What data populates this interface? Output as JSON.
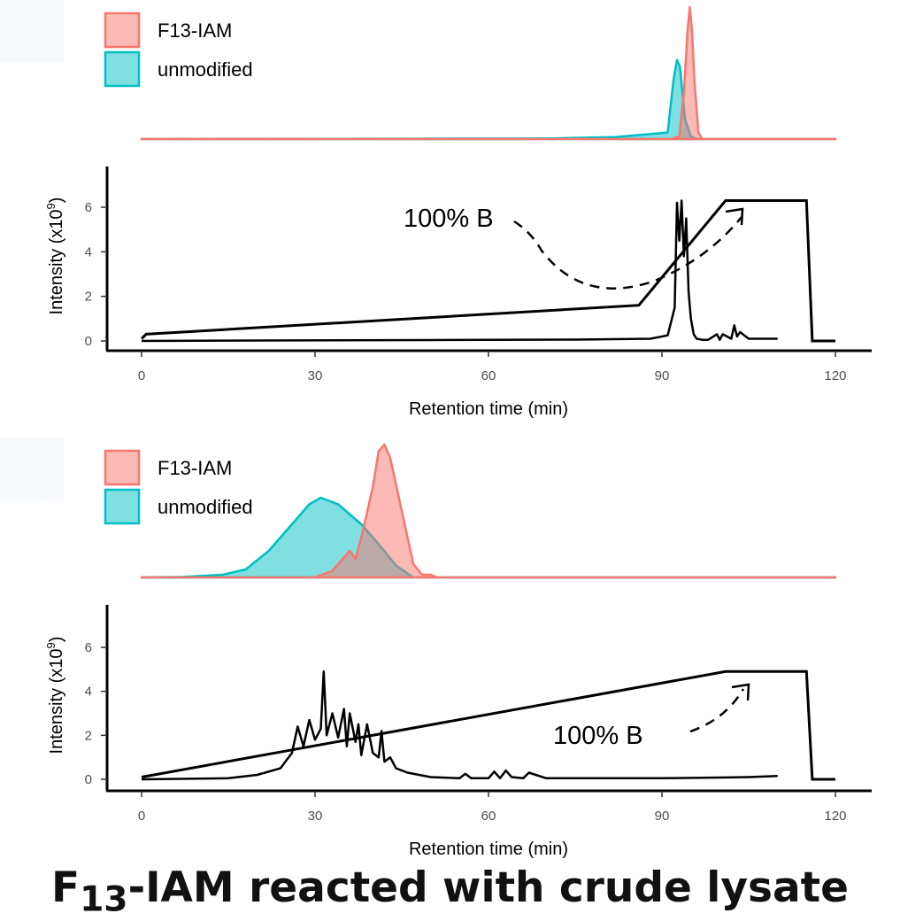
{
  "caption": {
    "prefix": "F",
    "subscript": "13",
    "rest": "-IAM reacted with crude lysate"
  },
  "colors": {
    "f13": "#F8766D",
    "unmodified": "#00BFC4",
    "trace": "#000000"
  },
  "chart_data": [
    {
      "type": "line",
      "panel": "top",
      "legend": [
        "F13-IAM",
        "unmodified"
      ],
      "legend_placement": "top-left",
      "xlabel": "Retention time (min)",
      "ylabel": "Intensity (x10^9)",
      "xlim": [
        0,
        120
      ],
      "ylim": [
        0,
        7.8
      ],
      "xticks": [
        0,
        30,
        60,
        90,
        120
      ],
      "yticks": [
        0,
        2,
        4,
        6
      ],
      "annotation": "100% B",
      "density": [
        {
          "name": "unmodified",
          "x": [
            0,
            70,
            82,
            91,
            92,
            92.6,
            93.1,
            94,
            95,
            96,
            120
          ],
          "y": [
            0,
            0.004,
            0.015,
            0.05,
            0.45,
            0.6,
            0.55,
            0.15,
            0.02,
            0,
            0
          ]
        },
        {
          "name": "F13-IAM",
          "x": [
            0,
            91.5,
            93,
            93.8,
            94.4,
            94.8,
            95.2,
            95.6,
            96.3,
            97,
            120
          ],
          "y": [
            0,
            0,
            0.02,
            0.35,
            0.8,
            1.0,
            0.82,
            0.45,
            0.05,
            0,
            0
          ]
        }
      ],
      "gradient": {
        "x": [
          0,
          0.8,
          86,
          101,
          115,
          116,
          120
        ],
        "y": [
          0.1,
          0.3,
          1.6,
          6.3,
          6.3,
          0,
          0
        ]
      },
      "intensity": {
        "x": [
          0,
          20,
          50,
          75,
          88,
          91,
          92.2,
          92.6,
          93,
          93.4,
          93.8,
          94.2,
          94.6,
          95,
          95.5,
          96,
          97,
          98,
          99.5,
          100,
          100.5,
          102,
          102.5,
          103,
          103.5,
          105,
          108,
          110
        ],
        "y": [
          0,
          0.02,
          0.04,
          0.06,
          0.1,
          0.25,
          1.5,
          6.2,
          4.5,
          6.3,
          3.8,
          5.5,
          2.2,
          1.0,
          0.3,
          0.1,
          0.05,
          0.05,
          0.3,
          0.05,
          0.3,
          0.1,
          0.7,
          0.2,
          0.4,
          0.1,
          0.1,
          0.1
        ]
      }
    },
    {
      "type": "line",
      "panel": "bottom",
      "legend": [
        "F13-IAM",
        "unmodified"
      ],
      "legend_placement": "top-left",
      "xlabel": "Retention time (min)",
      "ylabel": "Intensity (x10^9)",
      "xlim": [
        0,
        120
      ],
      "ylim": [
        0,
        7.8
      ],
      "xticks": [
        0,
        30,
        60,
        90,
        120
      ],
      "yticks": [
        0,
        2,
        4,
        6
      ],
      "annotation": "100% B",
      "density": [
        {
          "name": "unmodified",
          "x": [
            0,
            7,
            14,
            18,
            22,
            26,
            29,
            31,
            34,
            38,
            41,
            44,
            47,
            120
          ],
          "y": [
            0,
            0.003,
            0.02,
            0.06,
            0.2,
            0.4,
            0.55,
            0.6,
            0.55,
            0.4,
            0.25,
            0.09,
            0,
            0
          ]
        },
        {
          "name": "F13-IAM",
          "x": [
            0,
            30,
            33,
            35,
            36,
            37,
            38,
            40,
            41,
            42,
            43,
            45,
            47,
            48.5,
            50,
            51,
            120
          ],
          "y": [
            0,
            0,
            0.05,
            0.15,
            0.2,
            0.14,
            0.3,
            0.68,
            0.95,
            1.0,
            0.9,
            0.5,
            0.1,
            0.02,
            0.02,
            0,
            0
          ]
        }
      ],
      "gradient": {
        "x": [
          0,
          101,
          115,
          116,
          120
        ],
        "y": [
          0.1,
          4.9,
          4.9,
          0,
          0
        ]
      },
      "intensity": {
        "x": [
          0,
          15,
          20,
          24,
          26,
          27,
          28,
          29,
          30,
          31,
          31.5,
          32,
          33,
          34,
          35,
          35.5,
          36,
          37,
          37.5,
          38,
          39,
          40,
          41,
          41.5,
          42,
          43,
          44,
          46,
          48,
          50,
          55,
          56,
          57,
          60,
          61,
          62,
          63,
          64,
          66,
          67,
          70,
          80,
          90,
          100,
          105,
          110
        ],
        "y": [
          0,
          0.05,
          0.2,
          0.5,
          1.2,
          2.4,
          1.5,
          2.7,
          1.8,
          2.3,
          4.9,
          2.0,
          3.0,
          1.9,
          3.2,
          1.5,
          3.0,
          1.7,
          2.5,
          1.1,
          2.5,
          1.2,
          1.0,
          2.2,
          0.8,
          1.0,
          0.5,
          0.3,
          0.2,
          0.1,
          0.05,
          0.25,
          0.05,
          0.05,
          0.35,
          0.05,
          0.4,
          0.1,
          0.05,
          0.3,
          0.05,
          0.05,
          0.05,
          0.08,
          0.1,
          0.15
        ]
      }
    }
  ]
}
